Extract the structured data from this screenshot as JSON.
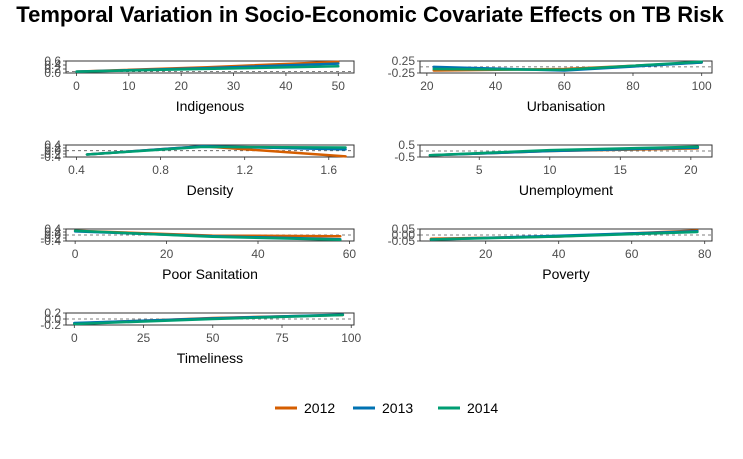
{
  "title": "Temporal Variation in Socio-Economic Covariate Effects on TB Risk",
  "colors": {
    "2012": "#D55E00",
    "2013": "#0072B2",
    "2014": "#009E73"
  },
  "legend": [
    "2012",
    "2013",
    "2014"
  ],
  "chart_data": [
    {
      "type": "line",
      "xlabel": "Indigenous",
      "x_ticks": [
        0,
        10,
        20,
        30,
        40,
        50
      ],
      "y_ticks": [
        "0.6",
        "0.4",
        "0.2",
        "0.0"
      ],
      "xlim": [
        -2,
        53
      ],
      "ylim": [
        -0.08,
        0.6
      ],
      "ref_y": 0,
      "series": [
        {
          "name": "2012",
          "x": [
            0,
            25,
            50
          ],
          "y": [
            0.0,
            0.25,
            0.55
          ]
        },
        {
          "name": "2013",
          "x": [
            0,
            25,
            50
          ],
          "y": [
            0.0,
            0.2,
            0.45
          ]
        },
        {
          "name": "2014",
          "x": [
            0,
            25,
            50
          ],
          "y": [
            0.0,
            0.15,
            0.3
          ]
        }
      ]
    },
    {
      "type": "line",
      "xlabel": "Urbanisation",
      "x_ticks": [
        20,
        40,
        60,
        80,
        100
      ],
      "y_ticks": [
        "0.25",
        "-0.25"
      ],
      "xlim": [
        18,
        103
      ],
      "ylim": [
        -0.42,
        0.4
      ],
      "ref_y": 0,
      "series": [
        {
          "name": "2012",
          "x": [
            22,
            60,
            100
          ],
          "y": [
            -0.25,
            -0.15,
            0.3
          ]
        },
        {
          "name": "2013",
          "x": [
            22,
            60,
            100
          ],
          "y": [
            0.0,
            -0.25,
            0.3
          ]
        },
        {
          "name": "2014",
          "x": [
            22,
            60,
            100
          ],
          "y": [
            -0.15,
            -0.2,
            0.35
          ]
        }
      ]
    },
    {
      "type": "line",
      "xlabel": "Density",
      "x_ticks": [
        "0.4",
        "0.8",
        "1.2",
        "1.6"
      ],
      "x_tick_values": [
        0.4,
        0.8,
        1.2,
        1.6
      ],
      "y_ticks": [
        "0.4",
        "0.2",
        "0.0",
        "-0.2",
        "-0.4"
      ],
      "xlim": [
        0.35,
        1.72
      ],
      "ylim": [
        -0.5,
        0.45
      ],
      "ref_y": 0,
      "series": [
        {
          "name": "2012",
          "x": [
            0.45,
            1.0,
            1.68
          ],
          "y": [
            -0.3,
            0.35,
            -0.45
          ]
        },
        {
          "name": "2013",
          "x": [
            0.45,
            1.0,
            1.68
          ],
          "y": [
            -0.3,
            0.35,
            0.1
          ]
        },
        {
          "name": "2014",
          "x": [
            0.45,
            1.0,
            1.68
          ],
          "y": [
            -0.3,
            0.3,
            0.25
          ]
        }
      ]
    },
    {
      "type": "line",
      "xlabel": "Unemployment",
      "x_ticks": [
        5,
        10,
        15,
        20
      ],
      "y_ticks": [
        "0.5",
        "-0.5"
      ],
      "xlim": [
        0.8,
        21.5
      ],
      "ylim": [
        -0.7,
        0.7
      ],
      "ref_y": 0,
      "series": [
        {
          "name": "2012",
          "x": [
            1.5,
            10,
            20.5
          ],
          "y": [
            -0.5,
            0.0,
            0.3
          ]
        },
        {
          "name": "2013",
          "x": [
            1.5,
            10,
            20.5
          ],
          "y": [
            -0.5,
            0.0,
            0.4
          ]
        },
        {
          "name": "2014",
          "x": [
            1.5,
            10,
            20.5
          ],
          "y": [
            -0.5,
            0.1,
            0.5
          ]
        }
      ]
    },
    {
      "type": "line",
      "xlabel": "Poor Sanitation",
      "x_ticks": [
        0,
        20,
        40,
        60
      ],
      "y_ticks": [
        "0.4",
        "0.2",
        "0.0",
        "-0.2",
        "-0.4"
      ],
      "xlim": [
        -2,
        61
      ],
      "ylim": [
        -0.5,
        0.5
      ],
      "ref_y": 0,
      "series": [
        {
          "name": "2012",
          "x": [
            0,
            30,
            58
          ],
          "y": [
            0.35,
            -0.05,
            -0.1
          ]
        },
        {
          "name": "2013",
          "x": [
            0,
            30,
            58
          ],
          "y": [
            0.3,
            -0.1,
            -0.35
          ]
        },
        {
          "name": "2014",
          "x": [
            0,
            30,
            58
          ],
          "y": [
            0.35,
            -0.15,
            -0.4
          ]
        }
      ]
    },
    {
      "type": "line",
      "xlabel": "Poverty",
      "x_ticks": [
        20,
        40,
        60,
        80
      ],
      "y_ticks": [
        "0.05",
        "0.00",
        "-0.05"
      ],
      "xlim": [
        2,
        82
      ],
      "ylim": [
        -0.08,
        0.08
      ],
      "ref_y": 0,
      "series": [
        {
          "name": "2012",
          "x": [
            5,
            40,
            78
          ],
          "y": [
            -0.05,
            -0.02,
            0.06
          ]
        },
        {
          "name": "2013",
          "x": [
            5,
            40,
            78
          ],
          "y": [
            -0.06,
            -0.01,
            0.05
          ]
        },
        {
          "name": "2014",
          "x": [
            5,
            40,
            78
          ],
          "y": [
            -0.06,
            -0.02,
            0.04
          ]
        }
      ]
    },
    {
      "type": "line",
      "xlabel": "Timeliness",
      "x_ticks": [
        0,
        25,
        50,
        75,
        100
      ],
      "y_ticks": [
        "0.2",
        "0.0",
        "-0.2"
      ],
      "xlim": [
        -3,
        101
      ],
      "ylim": [
        -0.3,
        0.3
      ],
      "ref_y": 0,
      "series": [
        {
          "name": "2012",
          "x": [
            0,
            50,
            97
          ],
          "y": [
            -0.22,
            0.05,
            0.2
          ]
        },
        {
          "name": "2013",
          "x": [
            0,
            50,
            97
          ],
          "y": [
            -0.2,
            0.03,
            0.22
          ]
        },
        {
          "name": "2014",
          "x": [
            0,
            50,
            97
          ],
          "y": [
            -0.25,
            0.0,
            0.2
          ]
        }
      ]
    }
  ]
}
